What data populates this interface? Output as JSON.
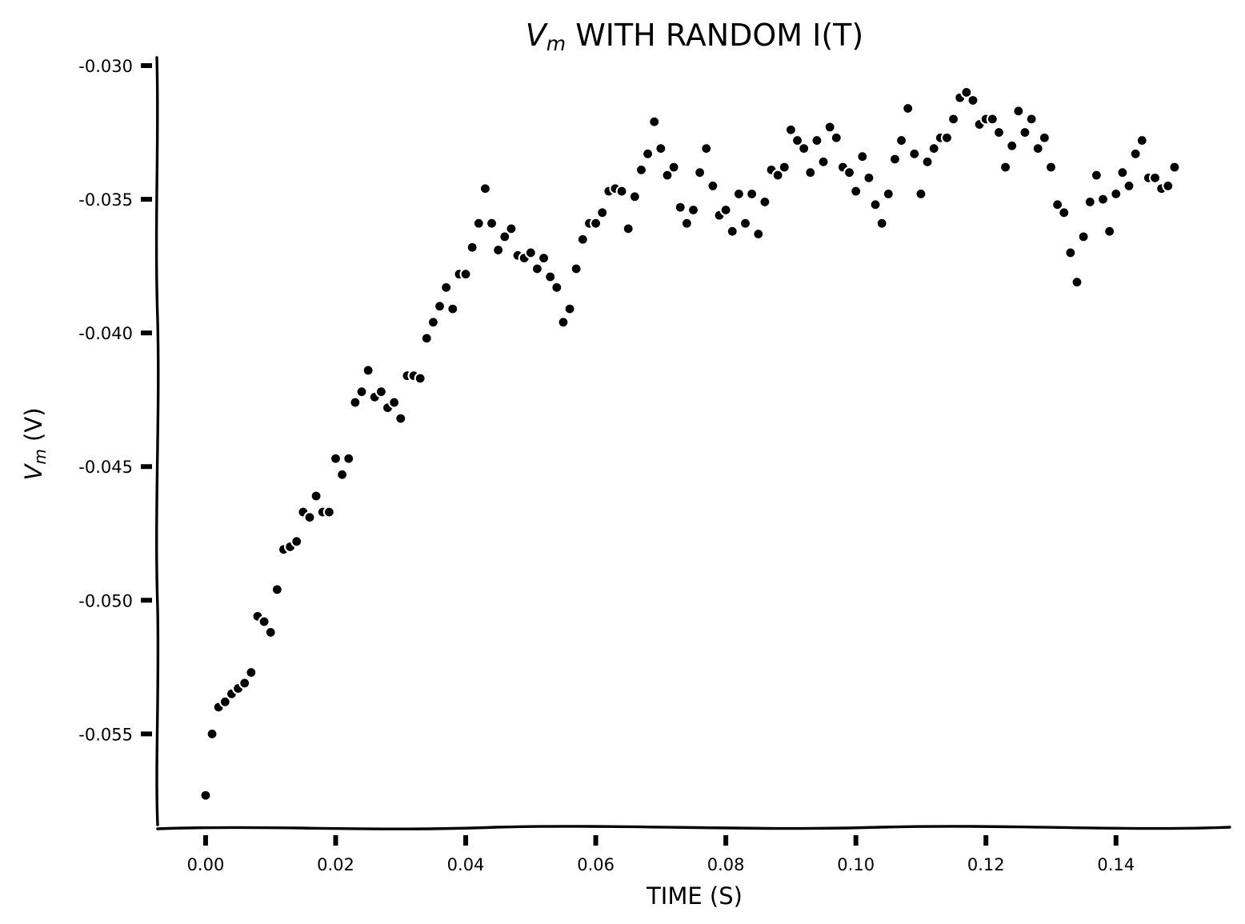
{
  "chart_data": {
    "type": "scatter",
    "title": {
      "main": "V",
      "sub": "m",
      "rest": " WITH RANDOM I(T)"
    },
    "xlabel": "TIME (S)",
    "ylabel": {
      "main": "V",
      "sub": "m",
      "rest": " (V)"
    },
    "xlim": [
      -0.0075,
      0.1575
    ],
    "ylim": [
      -0.0584,
      -0.0297
    ],
    "xticks": [
      0.0,
      0.02,
      0.04,
      0.06,
      0.08,
      0.1,
      0.12,
      0.14
    ],
    "xtick_labels": [
      "0.00",
      "0.02",
      "0.04",
      "0.06",
      "0.08",
      "0.10",
      "0.12",
      "0.14"
    ],
    "yticks": [
      -0.03,
      -0.035,
      -0.04,
      -0.045,
      -0.05,
      -0.055
    ],
    "ytick_labels": [
      "-0.030",
      "-0.035",
      "-0.040",
      "-0.045",
      "-0.050",
      "-0.055"
    ],
    "grid": false,
    "style": "xkcd",
    "marker_color": "#000000",
    "x": [
      0.0,
      0.001,
      0.002,
      0.003,
      0.004,
      0.005,
      0.006,
      0.007,
      0.008,
      0.009,
      0.01,
      0.011,
      0.012,
      0.013,
      0.014,
      0.015,
      0.016,
      0.017,
      0.018,
      0.019,
      0.02,
      0.021,
      0.022,
      0.023,
      0.024,
      0.025,
      0.026,
      0.027,
      0.028,
      0.029,
      0.03,
      0.031,
      0.032,
      0.033,
      0.034,
      0.035,
      0.036,
      0.037,
      0.038,
      0.039,
      0.04,
      0.041,
      0.042,
      0.043,
      0.044,
      0.045,
      0.046,
      0.047,
      0.048,
      0.049,
      0.05,
      0.051,
      0.052,
      0.053,
      0.054,
      0.055,
      0.056,
      0.057,
      0.058,
      0.059,
      0.06,
      0.061,
      0.062,
      0.063,
      0.064,
      0.065,
      0.066,
      0.067,
      0.068,
      0.069,
      0.07,
      0.071,
      0.072,
      0.073,
      0.074,
      0.075,
      0.076,
      0.077,
      0.078,
      0.079,
      0.08,
      0.081,
      0.082,
      0.083,
      0.084,
      0.085,
      0.086,
      0.087,
      0.088,
      0.089,
      0.09,
      0.091,
      0.092,
      0.093,
      0.094,
      0.095,
      0.096,
      0.097,
      0.098,
      0.099,
      0.1,
      0.101,
      0.102,
      0.103,
      0.104,
      0.105,
      0.106,
      0.107,
      0.108,
      0.109,
      0.11,
      0.111,
      0.112,
      0.113,
      0.114,
      0.115,
      0.116,
      0.117,
      0.118,
      0.119,
      0.12,
      0.121,
      0.122,
      0.123,
      0.124,
      0.125,
      0.126,
      0.127,
      0.128,
      0.129,
      0.13,
      0.131,
      0.132,
      0.133,
      0.134,
      0.135,
      0.136,
      0.137,
      0.138,
      0.139,
      0.14,
      0.141,
      0.142,
      0.143,
      0.144,
      0.145,
      0.146,
      0.147,
      0.148,
      0.149
    ],
    "y": [
      -0.0573,
      -0.055,
      -0.054,
      -0.0538,
      -0.0535,
      -0.0533,
      -0.0531,
      -0.0527,
      -0.0506,
      -0.0508,
      -0.0512,
      -0.0496,
      -0.0481,
      -0.048,
      -0.0478,
      -0.0467,
      -0.0469,
      -0.0461,
      -0.0467,
      -0.0467,
      -0.0447,
      -0.0453,
      -0.0447,
      -0.0426,
      -0.0422,
      -0.0414,
      -0.0424,
      -0.0422,
      -0.0428,
      -0.0426,
      -0.0432,
      -0.0416,
      -0.0416,
      -0.0417,
      -0.0402,
      -0.0396,
      -0.039,
      -0.0383,
      -0.0391,
      -0.0378,
      -0.0378,
      -0.0368,
      -0.0359,
      -0.0346,
      -0.0359,
      -0.0369,
      -0.0364,
      -0.0361,
      -0.0371,
      -0.0372,
      -0.037,
      -0.0376,
      -0.0372,
      -0.0379,
      -0.0383,
      -0.0396,
      -0.0391,
      -0.0376,
      -0.0365,
      -0.0359,
      -0.0359,
      -0.0355,
      -0.0347,
      -0.0346,
      -0.0347,
      -0.0361,
      -0.0349,
      -0.0339,
      -0.0333,
      -0.0321,
      -0.0331,
      -0.0341,
      -0.0338,
      -0.0353,
      -0.0359,
      -0.0354,
      -0.034,
      -0.0331,
      -0.0345,
      -0.0356,
      -0.0354,
      -0.0362,
      -0.0348,
      -0.0359,
      -0.0348,
      -0.0363,
      -0.0351,
      -0.0339,
      -0.0341,
      -0.0338,
      -0.0324,
      -0.0328,
      -0.0331,
      -0.034,
      -0.0328,
      -0.0336,
      -0.0323,
      -0.0327,
      -0.0338,
      -0.034,
      -0.0347,
      -0.0334,
      -0.0342,
      -0.0352,
      -0.0359,
      -0.0348,
      -0.0335,
      -0.0328,
      -0.0316,
      -0.0333,
      -0.0348,
      -0.0336,
      -0.0331,
      -0.0327,
      -0.0327,
      -0.032,
      -0.0312,
      -0.031,
      -0.0313,
      -0.0322,
      -0.032,
      -0.032,
      -0.0325,
      -0.0338,
      -0.033,
      -0.0317,
      -0.0325,
      -0.032,
      -0.0331,
      -0.0327,
      -0.0338,
      -0.0352,
      -0.0355,
      -0.037,
      -0.0381,
      -0.0364,
      -0.0351,
      -0.0341,
      -0.035,
      -0.0362,
      -0.0348,
      -0.034,
      -0.0345,
      -0.0333,
      -0.0328,
      -0.0342,
      -0.0342,
      -0.0346,
      -0.0345,
      -0.0338
    ]
  }
}
